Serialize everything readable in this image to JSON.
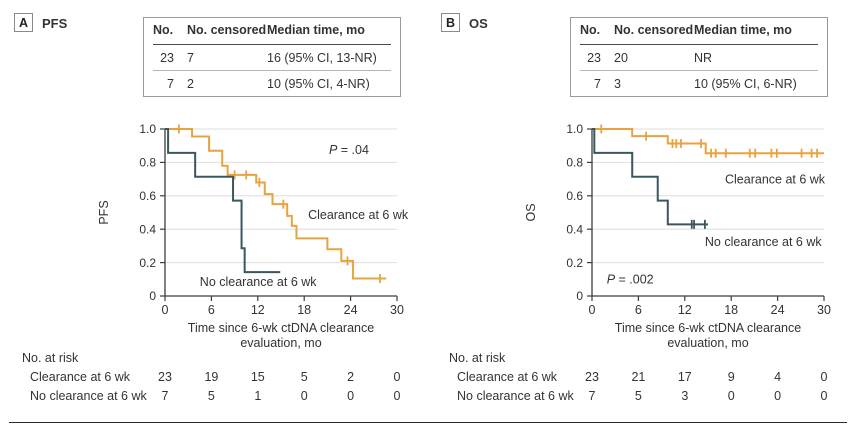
{
  "figure": {
    "panels": [
      {
        "tag": "A",
        "title": "PFS",
        "summary_table": {
          "columns": [
            "No.",
            "No. censored",
            "Median time, mo"
          ],
          "rows": [
            [
              "23",
              "7",
              "16 (95% CI, 13-NR)"
            ],
            [
              "7",
              "2",
              "10 (95% CI, 4-NR)"
            ]
          ]
        },
        "at_risk": {
          "title": "No. at risk",
          "rows": [
            {
              "label": "Clearance at 6 wk",
              "values": [
                "23",
                "19",
                "15",
                "5",
                "2",
                "0"
              ]
            },
            {
              "label": "No clearance at 6 wk",
              "values": [
                "7",
                "5",
                "1",
                "0",
                "0",
                "0"
              ]
            }
          ]
        }
      },
      {
        "tag": "B",
        "title": "OS",
        "summary_table": {
          "columns": [
            "No.",
            "No. censored",
            "Median time, mo"
          ],
          "rows": [
            [
              "23",
              "20",
              "NR"
            ],
            [
              "7",
              "3",
              "10 (95% CI, 6-NR)"
            ]
          ]
        },
        "at_risk": {
          "title": "No. at risk",
          "rows": [
            {
              "label": "Clearance at 6 wk",
              "values": [
                "23",
                "21",
                "17",
                "9",
                "4",
                "0"
              ]
            },
            {
              "label": "No clearance at 6 wk",
              "values": [
                "7",
                "5",
                "3",
                "0",
                "0",
                "0"
              ]
            }
          ]
        }
      }
    ],
    "colors": {
      "clearance": "#E8A33E",
      "no_clearance": "#3A5660",
      "axis": "#3d3d3d",
      "grid": "#dedede",
      "text": "#333333"
    }
  },
  "chart_data": [
    {
      "type": "line",
      "subtype": "kaplan-meier-step",
      "panel_label": "A",
      "title": "PFS",
      "xlabel": [
        "Time since 6-wk ctDNA clearance",
        "evaluation, mo"
      ],
      "ylabel": "PFS",
      "xlim": [
        0,
        30
      ],
      "ylim": [
        0,
        1
      ],
      "x_ticks": [
        0,
        6,
        12,
        18,
        24,
        30
      ],
      "y_ticks": [
        0,
        0.2,
        0.4,
        0.6,
        0.8,
        1
      ],
      "y_tick_labels": [
        "0",
        "0.2",
        "0.4",
        "0.6",
        "0.8",
        "1.0"
      ],
      "grid": true,
      "legend_position": "inline-labels",
      "p_value": "P = .04",
      "p_value_pos": [
        21.2,
        0.85
      ],
      "series": [
        {
          "name": "Clearance at 6 wk",
          "color": "#E8A33E",
          "steps": [
            [
              0,
              1
            ],
            [
              3.5,
              0.955
            ],
            [
              5.7,
              0.87
            ],
            [
              7.4,
              0.78
            ],
            [
              8.1,
              0.725
            ],
            [
              11.8,
              0.68
            ],
            [
              12.9,
              0.61
            ],
            [
              13.9,
              0.55
            ],
            [
              15.8,
              0.48
            ],
            [
              16.4,
              0.42
            ],
            [
              17,
              0.345
            ],
            [
              21,
              0.28
            ],
            [
              22.8,
              0.21
            ],
            [
              24.3,
              0.105
            ]
          ],
          "end_x": 28.6,
          "censors": [
            [
              1.8,
              1
            ],
            [
              9,
              0.725
            ],
            [
              10.5,
              0.725
            ],
            [
              12.2,
              0.68
            ],
            [
              15.3,
              0.55
            ],
            [
              23.6,
              0.21
            ],
            [
              27.8,
              0.105
            ]
          ],
          "label": "Clearance at 6 wk",
          "label_pos": [
            18.5,
            0.46
          ]
        },
        {
          "name": "No clearance at 6 wk",
          "color": "#3A5660",
          "steps": [
            [
              0,
              1
            ],
            [
              0.4,
              0.857
            ],
            [
              3.9,
              0.714
            ],
            [
              8.8,
              0.571
            ],
            [
              9.9,
              0.286
            ],
            [
              10.3,
              0.143
            ]
          ],
          "end_x": 14.9,
          "censors": [],
          "label": "No clearance at 6 wk",
          "label_pos": [
            4.5,
            0.06
          ]
        }
      ]
    },
    {
      "type": "line",
      "subtype": "kaplan-meier-step",
      "panel_label": "B",
      "title": "OS",
      "xlabel": [
        "Time since 6-wk ctDNA clearance",
        "evaluation, mo"
      ],
      "ylabel": "OS",
      "xlim": [
        0,
        30
      ],
      "ylim": [
        0,
        1
      ],
      "x_ticks": [
        0,
        6,
        12,
        18,
        24,
        30
      ],
      "y_ticks": [
        0,
        0.2,
        0.4,
        0.6,
        0.8,
        1
      ],
      "y_tick_labels": [
        "0",
        "0.2",
        "0.4",
        "0.6",
        "0.8",
        "1.0"
      ],
      "grid": true,
      "legend_position": "inline-labels",
      "p_value": "P = .002",
      "p_value_pos": [
        1.9,
        0.075
      ],
      "series": [
        {
          "name": "Clearance at 6 wk",
          "color": "#E8A33E",
          "steps": [
            [
              0,
              1
            ],
            [
              5.2,
              0.957
            ],
            [
              9.8,
              0.913
            ],
            [
              14.7,
              0.855
            ]
          ],
          "end_x": 30,
          "censors": [
            [
              1.2,
              1
            ],
            [
              7,
              0.957
            ],
            [
              10.4,
              0.913
            ],
            [
              10.9,
              0.913
            ],
            [
              11.5,
              0.913
            ],
            [
              14.1,
              0.913
            ],
            [
              15.4,
              0.855
            ],
            [
              16,
              0.855
            ],
            [
              17.3,
              0.855
            ],
            [
              20.4,
              0.855
            ],
            [
              21.1,
              0.855
            ],
            [
              23.2,
              0.855
            ],
            [
              23.9,
              0.855
            ],
            [
              27.1,
              0.855
            ],
            [
              28.4,
              0.855
            ],
            [
              29.1,
              0.855
            ]
          ],
          "label": "Clearance at 6 wk",
          "label_pos": [
            17.2,
            0.675
          ]
        },
        {
          "name": "No clearance at 6 wk",
          "color": "#3A5660",
          "steps": [
            [
              0,
              1
            ],
            [
              0.3,
              0.857
            ],
            [
              5.2,
              0.714
            ],
            [
              8.5,
              0.571
            ],
            [
              9.8,
              0.429
            ]
          ],
          "end_x": 15,
          "censors": [
            [
              12.9,
              0.429
            ],
            [
              13.2,
              0.429
            ],
            [
              14.6,
              0.429
            ]
          ],
          "label": "No clearance at 6 wk",
          "label_pos": [
            14.6,
            0.3
          ]
        }
      ]
    }
  ]
}
